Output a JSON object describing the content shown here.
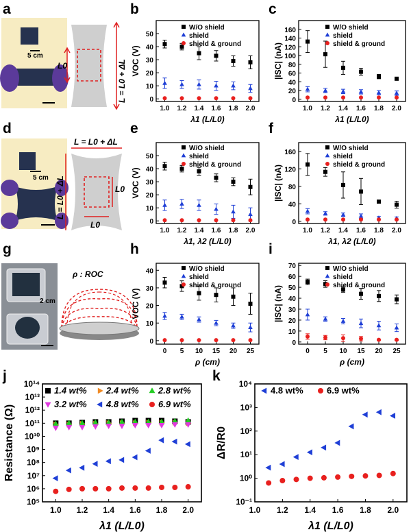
{
  "figure": {
    "panel_letters": [
      "a",
      "b",
      "c",
      "d",
      "e",
      "f",
      "g",
      "h",
      "i",
      "j",
      "k"
    ],
    "photo_a": {
      "scale_text": "5 cm"
    },
    "photo_d": {
      "scale_text": "5 cm"
    },
    "photo_g": {
      "scale_text": "2 cm"
    },
    "diagram_a": {
      "label_l0": "L0",
      "label_l": "L = L0 + ΔL"
    },
    "diagram_d": {
      "label_top": "L = L0 + ΔL",
      "label_side": "L = L0 + ΔL",
      "label_l0_right": "L0",
      "label_l0_bottom": "L0"
    },
    "diagram_g": {
      "label": "ρ : ROC"
    },
    "colors": {
      "wo_shield": "#000000",
      "shield": "#1f3fd6",
      "shield_ground": "#e8201e",
      "wt_2_4": "#f08a24",
      "wt_2_8": "#22cc22",
      "wt_3_2": "#e038e0",
      "photo_bg": "#f7ecc2",
      "glove": "#5b3a9a",
      "sample": "#26324f",
      "diagram_fill": "#cfcfcf",
      "dash": "#e02020"
    }
  },
  "chart_data": [
    {
      "id": "b",
      "type": "scatter",
      "ylabel": "VOC (V)",
      "xlabel": "λ1 (L/L0)",
      "xlim": [
        0.9,
        2.1
      ],
      "ylim": [
        -2,
        60
      ],
      "xticks": [
        "1.0",
        "1.2",
        "1.4",
        "1.6",
        "1.8",
        "2.0"
      ],
      "yticks": [
        "0",
        "10",
        "20",
        "30",
        "40",
        "50"
      ],
      "x": [
        1.0,
        1.2,
        1.4,
        1.6,
        1.8,
        2.0
      ],
      "series": [
        {
          "name": "W/O shield",
          "marker": "square",
          "values": [
            42,
            40,
            35,
            33,
            29,
            28
          ],
          "errors": [
            3,
            2.5,
            5,
            4,
            4,
            5
          ]
        },
        {
          "name": "shield",
          "marker": "triangle",
          "values": [
            12,
            11,
            11,
            10,
            10,
            8
          ],
          "errors": [
            4,
            3,
            3.5,
            3.5,
            3,
            3
          ]
        },
        {
          "name": "shield & ground",
          "marker": "circle",
          "values": [
            0.5,
            0.5,
            0.5,
            0.5,
            0.5,
            0.5
          ],
          "errors": [
            0,
            0,
            0,
            0,
            0,
            0
          ]
        }
      ]
    },
    {
      "id": "c",
      "type": "scatter",
      "ylabel": "|ISC| (nA)",
      "xlabel": "λ1 (L/L0)",
      "xlim": [
        0.9,
        2.1
      ],
      "ylim": [
        -5,
        180
      ],
      "xticks": [
        "1.0",
        "1.2",
        "1.4",
        "1.6",
        "1.8",
        "2.0"
      ],
      "yticks": [
        "0",
        "20",
        "40",
        "60",
        "80",
        "100",
        "120",
        "140",
        "160"
      ],
      "x": [
        1.0,
        1.2,
        1.4,
        1.6,
        1.8,
        2.0
      ],
      "series": [
        {
          "name": "W/O shield",
          "marker": "square",
          "values": [
            132,
            103,
            72,
            63,
            52,
            47
          ],
          "errors": [
            25,
            30,
            15,
            8,
            5,
            3
          ]
        },
        {
          "name": "shield",
          "marker": "triangle",
          "values": [
            23,
            20,
            18,
            17,
            15,
            14
          ],
          "errors": [
            6,
            5,
            5,
            5,
            5,
            5
          ]
        },
        {
          "name": "shield & ground",
          "marker": "circle",
          "values": [
            4,
            4,
            4,
            4,
            4,
            4
          ],
          "errors": [
            0,
            0,
            0,
            0,
            0,
            0
          ]
        }
      ]
    },
    {
      "id": "e",
      "type": "scatter",
      "ylabel": "VOC (V)",
      "xlabel": "λ1, λ2 (L/L0)",
      "xlim": [
        0.9,
        2.1
      ],
      "ylim": [
        -2,
        60
      ],
      "xticks": [
        "1.0",
        "1.2",
        "1.4",
        "1.6",
        "1.8",
        "2.0"
      ],
      "yticks": [
        "0",
        "10",
        "20",
        "30",
        "40",
        "50"
      ],
      "x": [
        1.0,
        1.2,
        1.4,
        1.6,
        1.8,
        2.0
      ],
      "series": [
        {
          "name": "W/O shield",
          "marker": "square",
          "values": [
            42,
            40,
            38,
            33,
            30,
            26
          ],
          "errors": [
            3,
            2.5,
            3,
            3,
            3,
            6
          ]
        },
        {
          "name": "shield",
          "marker": "triangle",
          "values": [
            12,
            13,
            12,
            9,
            7,
            5
          ],
          "errors": [
            4,
            3.5,
            4,
            4,
            5,
            5
          ]
        },
        {
          "name": "shield & ground",
          "marker": "circle",
          "values": [
            0.5,
            0.5,
            0.5,
            0.5,
            0.5,
            0.5
          ],
          "errors": [
            0,
            0,
            0,
            0,
            0,
            0
          ]
        }
      ]
    },
    {
      "id": "f",
      "type": "scatter",
      "ylabel": "|ISC| (nA)",
      "xlabel": "λ1, λ2 (L/L0)",
      "xlim": [
        0.9,
        2.1
      ],
      "ylim": [
        -5,
        180
      ],
      "xticks": [
        "1.0",
        "1.2",
        "1.4",
        "1.6",
        "1.8",
        "2.0"
      ],
      "yticks": [
        "0",
        "40",
        "80",
        "120",
        "160"
      ],
      "x": [
        1.0,
        1.2,
        1.4,
        1.6,
        1.8,
        2.0
      ],
      "series": [
        {
          "name": "W/O shield",
          "marker": "square",
          "values": [
            130,
            113,
            83,
            68,
            45,
            38
          ],
          "errors": [
            25,
            10,
            30,
            30,
            2,
            8
          ]
        },
        {
          "name": "shield",
          "marker": "triangle",
          "values": [
            23,
            18,
            15,
            12,
            8,
            7
          ],
          "errors": [
            6,
            4,
            4,
            5,
            3,
            3
          ]
        },
        {
          "name": "shield & ground",
          "marker": "circle",
          "values": [
            4,
            4,
            4,
            4,
            4,
            4
          ],
          "errors": [
            0,
            0,
            0,
            0,
            0,
            0
          ]
        }
      ]
    },
    {
      "id": "h",
      "type": "scatter",
      "ylabel": "VOC (V)",
      "xlabel": "ρ (cm)",
      "xlim": [
        -2.5,
        27.5
      ],
      "ylim": [
        -2,
        44
      ],
      "xticks": [
        "0",
        "5",
        "10",
        "15",
        "20",
        "25"
      ],
      "yticks": [
        "0",
        "10",
        "20",
        "30",
        "40"
      ],
      "x": [
        0,
        5,
        10,
        15,
        20,
        25
      ],
      "series": [
        {
          "name": "W/O shield",
          "marker": "square",
          "values": [
            33,
            31,
            27,
            26,
            25,
            21
          ],
          "errors": [
            3,
            3,
            4,
            4,
            5,
            6
          ]
        },
        {
          "name": "shield",
          "marker": "triangle",
          "values": [
            14,
            13.5,
            12,
            10,
            8.5,
            7.5
          ],
          "errors": [
            2,
            1.5,
            1.5,
            1.5,
            1.5,
            2.5
          ]
        },
        {
          "name": "shield & ground",
          "marker": "circle",
          "values": [
            0.3,
            0.3,
            0.3,
            0.3,
            0.3,
            0.3
          ],
          "errors": [
            0,
            0,
            0,
            0,
            0,
            0
          ]
        }
      ]
    },
    {
      "id": "i",
      "type": "scatter",
      "ylabel": "|ISC| (nA)",
      "xlabel": "ρ (cm)",
      "xlim": [
        -2.5,
        27.5
      ],
      "ylim": [
        -2,
        72
      ],
      "xticks": [
        "0",
        "5",
        "10",
        "15",
        "20",
        "25"
      ],
      "yticks": [
        "0",
        "10",
        "20",
        "30",
        "40",
        "50",
        "60",
        "70"
      ],
      "x": [
        0,
        5,
        10,
        15,
        20,
        25
      ],
      "series": [
        {
          "name": "W/O shield",
          "marker": "square",
          "values": [
            55,
            53,
            48,
            44,
            42,
            39
          ],
          "errors": [
            2.5,
            3,
            2.5,
            5,
            5,
            4
          ]
        },
        {
          "name": "shield",
          "marker": "triangle",
          "values": [
            25,
            21,
            19,
            17,
            15,
            13
          ],
          "errors": [
            5,
            2,
            2.5,
            4,
            4,
            3.5
          ]
        },
        {
          "name": "shield & ground",
          "marker": "circle",
          "values": [
            5,
            4,
            3.5,
            3,
            2,
            2
          ],
          "errors": [
            2.5,
            2,
            3,
            2,
            0.5,
            0.5
          ]
        }
      ]
    },
    {
      "id": "j",
      "type": "scatter",
      "yscale": "log",
      "ylabel": "Resistance (Ω)",
      "xlabel": "λ1 (L/L0)",
      "xlim": [
        0.9,
        2.1
      ],
      "ylim_exp": [
        5,
        14
      ],
      "xticks": [
        "1.0",
        "1.2",
        "1.4",
        "1.6",
        "1.8",
        "2.0"
      ],
      "yticks": [
        "10⁵",
        "10⁶",
        "10⁷",
        "10⁸",
        "10⁹",
        "10¹⁰",
        "10¹¹",
        "10¹²",
        "10¹³",
        "10¹⁴"
      ],
      "x": [
        1.0,
        1.1,
        1.2,
        1.3,
        1.4,
        1.5,
        1.6,
        1.7,
        1.8,
        1.9,
        2.0
      ],
      "series": [
        {
          "name": "1.4 wt%",
          "marker": "square",
          "log10_values": [
            11.0,
            11.0,
            11.05,
            11.1,
            11.1,
            11.15,
            11.2,
            11.2,
            11.2,
            11.15,
            11.1
          ]
        },
        {
          "name": "2.4 wt%",
          "marker": "tri-right",
          "log10_values": [
            10.9,
            10.9,
            10.95,
            10.95,
            11.0,
            11.0,
            11.0,
            11.05,
            11.05,
            11.05,
            11.0
          ]
        },
        {
          "name": "2.8 wt%",
          "marker": "tri-up",
          "log10_values": [
            10.95,
            11.0,
            11.0,
            11.05,
            11.05,
            11.1,
            11.1,
            11.1,
            11.1,
            11.15,
            11.2
          ]
        },
        {
          "name": "3.2 wt%",
          "marker": "tri-down",
          "log10_values": [
            10.65,
            10.7,
            10.7,
            10.75,
            10.8,
            10.8,
            10.85,
            10.85,
            10.85,
            10.9,
            10.9
          ]
        },
        {
          "name": "4.8 wt%",
          "marker": "tri-left",
          "log10_values": [
            6.8,
            7.4,
            7.6,
            7.9,
            8.1,
            8.2,
            8.4,
            8.9,
            9.7,
            9.6,
            9.4
          ]
        },
        {
          "name": "6.9 wt%",
          "marker": "circle",
          "log10_values": [
            5.8,
            5.95,
            6.0,
            6.0,
            6.0,
            6.05,
            6.05,
            6.05,
            6.1,
            6.1,
            6.15
          ]
        }
      ]
    },
    {
      "id": "k",
      "type": "scatter",
      "yscale": "log",
      "ylabel": "ΔR/R0",
      "xlabel": "λ1 (L/L0)",
      "xlim": [
        1.0,
        2.1
      ],
      "ylim_exp": [
        -1,
        4
      ],
      "xticks": [
        "1.0",
        "1.2",
        "1.4",
        "1.6",
        "1.8",
        "2.0"
      ],
      "yticks": [
        "10⁻¹",
        "10⁰",
        "10¹",
        "10²",
        "10³",
        "10⁴"
      ],
      "x": [
        1.1,
        1.2,
        1.3,
        1.4,
        1.5,
        1.6,
        1.7,
        1.8,
        1.9,
        2.0
      ],
      "series": [
        {
          "name": "4.8 wt%",
          "marker": "tri-left",
          "log10_values": [
            0.45,
            0.6,
            0.9,
            1.1,
            1.3,
            1.5,
            2.2,
            2.7,
            2.8,
            2.65
          ]
        },
        {
          "name": "6.9 wt%",
          "marker": "circle",
          "log10_values": [
            -0.2,
            -0.1,
            -0.05,
            0.0,
            0.02,
            0.05,
            0.08,
            0.1,
            0.12,
            0.2
          ]
        }
      ]
    }
  ]
}
